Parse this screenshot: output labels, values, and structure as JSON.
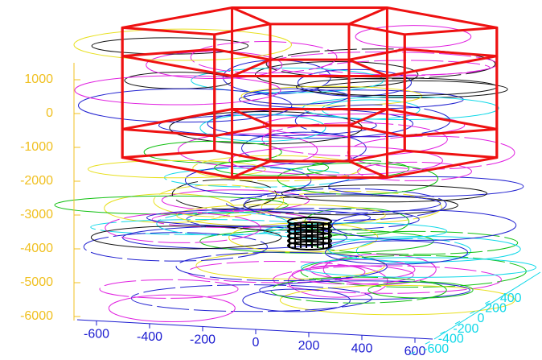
{
  "chart_data": {
    "type": "line3d",
    "zticks": [
      1000,
      0,
      -1000,
      -2000,
      -3000,
      -4000,
      -5000,
      -6000
    ],
    "xticks": [
      -600,
      -400,
      -200,
      0,
      200,
      400,
      600
    ],
    "yticks": [
      -600,
      -400,
      -200,
      0,
      200,
      400
    ],
    "zcolor": "#f0c020",
    "xcolor": "#1a1ad0",
    "ycolor": "#10d8e8",
    "structure_color": "#ee1111"
  }
}
